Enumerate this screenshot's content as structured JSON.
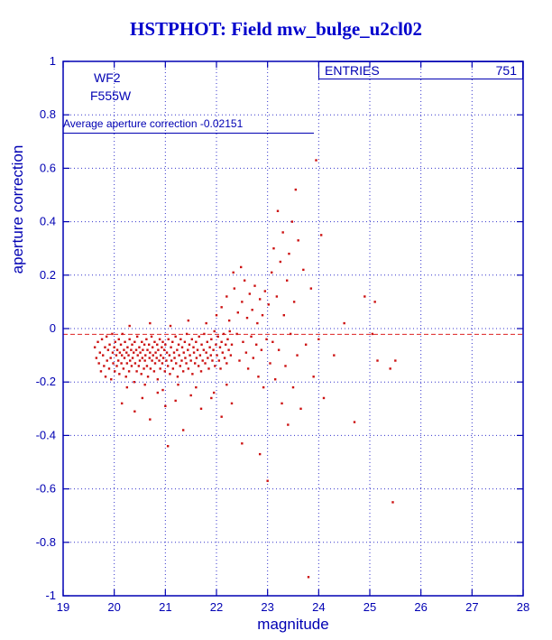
{
  "title": {
    "text": "HSTPHOT: Field mw_bulge_u2cl02"
  },
  "stats_box": {
    "label": "ENTRIES",
    "value": "751"
  },
  "annotations": {
    "camera": "WF2",
    "filter": "F555W",
    "average_line": "Average aperture correction -0.02151"
  },
  "colors": {
    "axis": "#0000b3",
    "grid": "#3333cc",
    "title": "#0000cc",
    "points": "#cc1111",
    "ref_line": "#dd2222"
  },
  "chart_data": {
    "type": "scatter",
    "title": "HSTPHOT: Field mw_bulge_u2cl02",
    "xlabel": "magnitude",
    "ylabel": "aperture correction",
    "xlim": [
      19,
      28
    ],
    "ylim": [
      -1,
      1
    ],
    "xticks": [
      19,
      20,
      21,
      22,
      23,
      24,
      25,
      26,
      27,
      28
    ],
    "xtick_labels": [
      "19",
      "20",
      "21",
      "22",
      "23",
      "24",
      "25",
      "26",
      "27",
      "28"
    ],
    "yticks": [
      -1,
      -0.8,
      -0.6,
      -0.4,
      -0.2,
      0,
      0.2,
      0.4,
      0.6,
      0.8,
      1
    ],
    "ytick_labels": [
      "-1",
      "-0.8",
      "-0.6",
      "-0.4",
      "-0.2",
      "0",
      "0.2",
      "0.4",
      "0.6",
      "0.8",
      "1"
    ],
    "grid": true,
    "legend": "none",
    "entries": 751,
    "average_aperture_correction": -0.02151,
    "reference_line_y": -0.02151,
    "points": [
      [
        19.62,
        -0.07
      ],
      [
        19.65,
        -0.11
      ],
      [
        19.68,
        -0.05
      ],
      [
        19.7,
        -0.13
      ],
      [
        19.72,
        -0.09
      ],
      [
        19.74,
        -0.16
      ],
      [
        19.76,
        -0.04
      ],
      [
        19.78,
        -0.1
      ],
      [
        19.8,
        -0.14
      ],
      [
        19.82,
        -0.07
      ],
      [
        19.83,
        -0.18
      ],
      [
        19.85,
        -0.03
      ],
      [
        19.86,
        -0.12
      ],
      [
        19.88,
        -0.08
      ],
      [
        19.9,
        -0.15
      ],
      [
        19.91,
        -0.06
      ],
      [
        19.93,
        -0.11
      ],
      [
        19.94,
        -0.19
      ],
      [
        19.96,
        -0.02
      ],
      [
        19.97,
        -0.09
      ],
      [
        19.98,
        -0.13
      ],
      [
        20.0,
        -0.07
      ],
      [
        20.01,
        -0.16
      ],
      [
        20.02,
        -0.05
      ],
      [
        20.04,
        -0.1
      ],
      [
        20.05,
        -0.14
      ],
      [
        20.06,
        -0.08
      ],
      [
        20.08,
        -0.12
      ],
      [
        20.09,
        -0.04
      ],
      [
        20.1,
        -0.17
      ],
      [
        20.11,
        -0.09
      ],
      [
        20.13,
        -0.06
      ],
      [
        20.14,
        -0.13
      ],
      [
        20.15,
        -0.1
      ],
      [
        20.16,
        -0.02
      ],
      [
        20.18,
        -0.15
      ],
      [
        20.19,
        -0.08
      ],
      [
        20.2,
        -0.11
      ],
      [
        20.21,
        -0.05
      ],
      [
        20.23,
        -0.18
      ],
      [
        20.24,
        -0.09
      ],
      [
        20.25,
        -0.13
      ],
      [
        20.26,
        -0.07
      ],
      [
        20.28,
        -0.1
      ],
      [
        20.29,
        -0.16
      ],
      [
        20.3,
        -0.04
      ],
      [
        20.31,
        -0.12
      ],
      [
        20.33,
        -0.08
      ],
      [
        20.34,
        -0.14
      ],
      [
        20.35,
        -0.06
      ],
      [
        20.36,
        -0.11
      ],
      [
        20.38,
        -0.09
      ],
      [
        20.39,
        -0.2
      ],
      [
        20.4,
        -0.05
      ],
      [
        20.41,
        -0.13
      ],
      [
        20.43,
        -0.08
      ],
      [
        20.44,
        -0.16
      ],
      [
        20.45,
        -0.03
      ],
      [
        20.46,
        -0.1
      ],
      [
        20.48,
        -0.14
      ],
      [
        20.49,
        -0.07
      ],
      [
        20.5,
        -0.12
      ],
      [
        20.51,
        -0.09
      ],
      [
        20.53,
        -0.17
      ],
      [
        20.54,
        -0.05
      ],
      [
        20.55,
        -0.11
      ],
      [
        20.56,
        -0.08
      ],
      [
        20.58,
        -0.15
      ],
      [
        20.59,
        -0.06
      ],
      [
        20.6,
        -0.12
      ],
      [
        20.61,
        -0.1
      ],
      [
        20.63,
        -0.04
      ],
      [
        20.64,
        -0.14
      ],
      [
        20.65,
        -0.08
      ],
      [
        20.66,
        -0.18
      ],
      [
        20.68,
        -0.06
      ],
      [
        20.69,
        -0.11
      ],
      [
        20.7,
        -0.09
      ],
      [
        20.71,
        -0.15
      ],
      [
        20.73,
        -0.03
      ],
      [
        20.74,
        -0.12
      ],
      [
        20.75,
        -0.07
      ],
      [
        20.76,
        -0.1
      ],
      [
        20.78,
        -0.16
      ],
      [
        20.79,
        -0.05
      ],
      [
        20.8,
        -0.13
      ],
      [
        20.81,
        -0.09
      ],
      [
        20.83,
        -0.11
      ],
      [
        20.84,
        -0.06
      ],
      [
        20.85,
        -0.19
      ],
      [
        20.86,
        -0.08
      ],
      [
        20.88,
        -0.12
      ],
      [
        20.89,
        -0.04
      ],
      [
        20.9,
        -0.15
      ],
      [
        20.91,
        -0.1
      ],
      [
        20.93,
        -0.07
      ],
      [
        20.94,
        -0.13
      ],
      [
        20.95,
        -0.05
      ],
      [
        20.96,
        -0.11
      ],
      [
        20.98,
        -0.08
      ],
      [
        20.99,
        -0.16
      ],
      [
        21.0,
        -0.06
      ],
      [
        21.02,
        -0.12
      ],
      [
        21.03,
        -0.09
      ],
      [
        21.05,
        -0.14
      ],
      [
        21.06,
        -0.04
      ],
      [
        21.08,
        -0.1
      ],
      [
        21.09,
        -0.17
      ],
      [
        21.11,
        -0.07
      ],
      [
        21.12,
        -0.12
      ],
      [
        21.14,
        -0.05
      ],
      [
        21.15,
        -0.15
      ],
      [
        21.17,
        -0.09
      ],
      [
        21.18,
        -0.11
      ],
      [
        21.2,
        -0.03
      ],
      [
        21.21,
        -0.13
      ],
      [
        21.23,
        -0.08
      ],
      [
        21.24,
        -0.18
      ],
      [
        21.26,
        -0.06
      ],
      [
        21.27,
        -0.1
      ],
      [
        21.29,
        -0.14
      ],
      [
        21.3,
        -0.04
      ],
      [
        21.32,
        -0.12
      ],
      [
        21.33,
        -0.07
      ],
      [
        21.35,
        -0.16
      ],
      [
        21.36,
        -0.09
      ],
      [
        21.38,
        -0.05
      ],
      [
        21.39,
        -0.11
      ],
      [
        21.41,
        -0.13
      ],
      [
        21.42,
        -0.02
      ],
      [
        21.44,
        -0.08
      ],
      [
        21.45,
        -0.15
      ],
      [
        21.47,
        -0.06
      ],
      [
        21.48,
        -0.1
      ],
      [
        21.5,
        -0.12
      ],
      [
        21.52,
        -0.04
      ],
      [
        21.53,
        -0.17
      ],
      [
        21.55,
        -0.07
      ],
      [
        21.56,
        -0.09
      ],
      [
        21.58,
        -0.13
      ],
      [
        21.6,
        -0.05
      ],
      [
        21.61,
        -0.11
      ],
      [
        21.63,
        -0.08
      ],
      [
        21.65,
        -0.14
      ],
      [
        21.66,
        -0.03
      ],
      [
        21.68,
        -0.1
      ],
      [
        21.7,
        -0.16
      ],
      [
        21.71,
        -0.06
      ],
      [
        21.73,
        -0.12
      ],
      [
        21.75,
        -0.08
      ],
      [
        21.76,
        -0.02
      ],
      [
        21.78,
        -0.13
      ],
      [
        21.8,
        -0.09
      ],
      [
        21.82,
        -0.05
      ],
      [
        21.83,
        -0.11
      ],
      [
        21.85,
        -0.15
      ],
      [
        21.87,
        -0.07
      ],
      [
        21.89,
        -0.1
      ],
      [
        21.9,
        -0.04
      ],
      [
        21.92,
        -0.12
      ],
      [
        21.94,
        -0.08
      ],
      [
        21.96,
        -0.01
      ],
      [
        21.97,
        -0.14
      ],
      [
        21.99,
        -0.06
      ],
      [
        22.01,
        -0.1
      ],
      [
        22.03,
        -0.03
      ],
      [
        22.05,
        -0.12
      ],
      [
        22.07,
        -0.07
      ],
      [
        22.08,
        -0.15
      ],
      [
        22.1,
        -0.05
      ],
      [
        22.12,
        -0.09
      ],
      [
        22.14,
        -0.02
      ],
      [
        22.16,
        -0.11
      ],
      [
        22.18,
        -0.06
      ],
      [
        22.2,
        -0.13
      ],
      [
        22.22,
        -0.04
      ],
      [
        22.24,
        -0.08
      ],
      [
        22.26,
        -0.01
      ],
      [
        22.28,
        -0.1
      ],
      [
        22.3,
        -0.06
      ],
      [
        20.3,
        0.01
      ],
      [
        20.7,
        0.02
      ],
      [
        21.1,
        0.01
      ],
      [
        21.45,
        0.03
      ],
      [
        21.8,
        0.02
      ],
      [
        22.0,
        0.05
      ],
      [
        22.1,
        0.08
      ],
      [
        22.2,
        0.12
      ],
      [
        22.25,
        0.03
      ],
      [
        22.35,
        0.15
      ],
      [
        22.4,
        -0.02
      ],
      [
        22.42,
        0.06
      ],
      [
        22.45,
        -0.12
      ],
      [
        22.5,
        0.1
      ],
      [
        22.52,
        -0.05
      ],
      [
        22.55,
        0.18
      ],
      [
        22.58,
        -0.09
      ],
      [
        22.6,
        0.04
      ],
      [
        22.62,
        -0.15
      ],
      [
        22.65,
        0.13
      ],
      [
        22.68,
        -0.03
      ],
      [
        22.7,
        0.07
      ],
      [
        22.72,
        -0.11
      ],
      [
        22.75,
        0.16
      ],
      [
        22.78,
        -0.06
      ],
      [
        22.8,
        0.02
      ],
      [
        22.82,
        -0.18
      ],
      [
        22.85,
        0.11
      ],
      [
        22.88,
        -0.08
      ],
      [
        22.9,
        0.05
      ],
      [
        22.92,
        -0.22
      ],
      [
        22.95,
        0.14
      ],
      [
        22.98,
        -0.04
      ],
      [
        22.33,
        0.21
      ],
      [
        22.48,
        0.23
      ],
      [
        20.15,
        -0.28
      ],
      [
        20.4,
        -0.31
      ],
      [
        20.55,
        -0.26
      ],
      [
        20.7,
        -0.34
      ],
      [
        20.85,
        -0.24
      ],
      [
        21.0,
        -0.29
      ],
      [
        21.2,
        -0.27
      ],
      [
        21.35,
        -0.38
      ],
      [
        21.5,
        -0.25
      ],
      [
        21.7,
        -0.3
      ],
      [
        21.9,
        -0.26
      ],
      [
        22.1,
        -0.33
      ],
      [
        22.3,
        -0.28
      ],
      [
        20.25,
        -0.22
      ],
      [
        20.6,
        -0.21
      ],
      [
        20.95,
        -0.23
      ],
      [
        21.25,
        -0.21
      ],
      [
        21.6,
        -0.22
      ],
      [
        21.95,
        -0.24
      ],
      [
        22.2,
        -0.21
      ],
      [
        21.05,
        -0.44
      ],
      [
        22.5,
        -0.43
      ],
      [
        23.0,
        -0.57
      ],
      [
        22.85,
        -0.47
      ],
      [
        23.02,
        0.09
      ],
      [
        23.05,
        -0.13
      ],
      [
        23.08,
        0.21
      ],
      [
        23.1,
        -0.05
      ],
      [
        23.12,
        0.3
      ],
      [
        23.15,
        -0.19
      ],
      [
        23.18,
        0.12
      ],
      [
        23.2,
        0.44
      ],
      [
        23.22,
        -0.08
      ],
      [
        23.25,
        0.25
      ],
      [
        23.28,
        -0.28
      ],
      [
        23.3,
        0.36
      ],
      [
        23.32,
        0.05
      ],
      [
        23.35,
        -0.14
      ],
      [
        23.38,
        0.18
      ],
      [
        23.4,
        -0.36
      ],
      [
        23.42,
        0.28
      ],
      [
        23.45,
        -0.02
      ],
      [
        23.48,
        0.4
      ],
      [
        23.5,
        -0.22
      ],
      [
        23.52,
        0.1
      ],
      [
        23.55,
        0.52
      ],
      [
        23.58,
        -0.1
      ],
      [
        23.6,
        0.33
      ],
      [
        23.65,
        -0.3
      ],
      [
        23.7,
        0.22
      ],
      [
        23.75,
        -0.06
      ],
      [
        23.8,
        -0.93
      ],
      [
        23.85,
        0.15
      ],
      [
        23.9,
        -0.18
      ],
      [
        23.95,
        0.63
      ],
      [
        24.0,
        -0.04
      ],
      [
        24.05,
        0.35
      ],
      [
        24.1,
        -0.26
      ],
      [
        24.3,
        -0.1
      ],
      [
        24.5,
        0.02
      ],
      [
        24.7,
        -0.35
      ],
      [
        24.9,
        0.12
      ],
      [
        25.05,
        -0.02
      ],
      [
        25.1,
        0.1
      ],
      [
        25.15,
        -0.12
      ],
      [
        25.4,
        -0.15
      ],
      [
        25.45,
        -0.65
      ],
      [
        25.5,
        -0.12
      ]
    ]
  }
}
